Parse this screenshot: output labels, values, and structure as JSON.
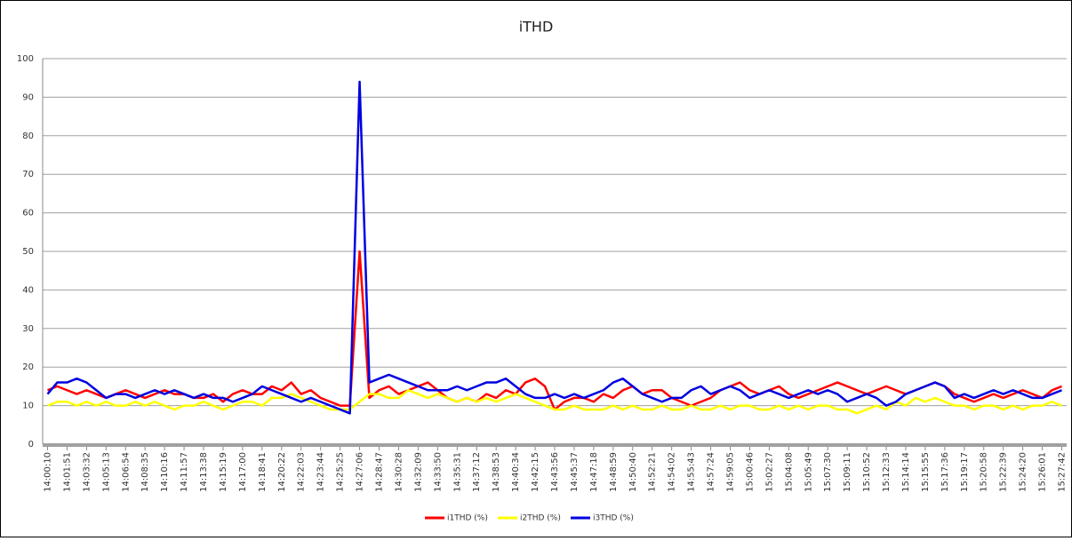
{
  "chart_data": {
    "type": "line",
    "title": "iTHD",
    "categories": [
      "14:00:10",
      null,
      "14:01:51",
      null,
      "14:03:32",
      null,
      "14:05:13",
      null,
      "14:06:54",
      null,
      "14:08:35",
      null,
      "14:10:16",
      null,
      "14:11:57",
      null,
      "14:13:38",
      null,
      "14:15:19",
      null,
      "14:17:00",
      null,
      "14:18:41",
      null,
      "14:20:22",
      null,
      "14:22:03",
      null,
      "14:23:44",
      null,
      "14:25:25",
      null,
      "14:27:06",
      null,
      "14:28:47",
      null,
      "14:30:28",
      null,
      "14:32:09",
      null,
      "14:33:50",
      null,
      "14:35:31",
      null,
      "14:37:12",
      null,
      "14:38:53",
      null,
      "14:40:34",
      null,
      "14:42:15",
      null,
      "14:43:56",
      null,
      "14:45:37",
      null,
      "14:47:18",
      null,
      "14:48:59",
      null,
      "14:50:40",
      null,
      "14:52:21",
      null,
      "14:54:02",
      null,
      "14:55:43",
      null,
      "14:57:24",
      null,
      "14:59:05",
      null,
      "15:00:46",
      null,
      "15:02:27",
      null,
      "15:04:08",
      null,
      "15:05:49",
      null,
      "15:07:30",
      null,
      "15:09:11",
      null,
      "15:10:52",
      null,
      "15:12:33",
      null,
      "15:14:14",
      null,
      "15:15:55",
      null,
      "15:17:36",
      null,
      "15:19:17",
      null,
      "15:20:58",
      null,
      "15:22:39",
      null,
      "15:24:20",
      null,
      "15:26:01",
      null,
      "15:27:42"
    ],
    "series": [
      {
        "name": "i1THD (%)",
        "color": "#ff0000",
        "values": [
          14,
          15,
          14,
          13,
          14,
          13,
          12,
          13,
          14,
          13,
          12,
          13,
          14,
          13,
          13,
          12,
          12,
          13,
          11,
          13,
          14,
          13,
          13,
          15,
          14,
          16,
          13,
          14,
          12,
          11,
          10,
          10,
          50,
          12,
          14,
          15,
          13,
          14,
          15,
          16,
          14,
          12,
          11,
          12,
          11,
          13,
          12,
          14,
          13,
          16,
          17,
          15,
          9,
          11,
          12,
          12,
          11,
          13,
          12,
          14,
          15,
          13,
          14,
          14,
          12,
          11,
          10,
          11,
          12,
          14,
          15,
          16,
          14,
          13,
          14,
          15,
          13,
          12,
          13,
          14,
          15,
          16,
          15,
          14,
          13,
          14,
          15,
          14,
          13,
          14,
          15,
          16,
          15,
          13,
          12,
          11,
          12,
          13,
          12,
          13,
          14,
          13,
          12,
          14,
          15
        ]
      },
      {
        "name": "i2THD (%)",
        "color": "#ffff00",
        "values": [
          10,
          11,
          11,
          10,
          11,
          10,
          11,
          10,
          10,
          11,
          10,
          11,
          10,
          9,
          10,
          10,
          11,
          10,
          9,
          10,
          11,
          11,
          10,
          12,
          12,
          13,
          12,
          11,
          10,
          9,
          9,
          9,
          11,
          13,
          13,
          12,
          12,
          14,
          13,
          12,
          13,
          12,
          11,
          12,
          11,
          12,
          11,
          12,
          13,
          12,
          11,
          10,
          9,
          9,
          10,
          9,
          9,
          9,
          10,
          9,
          10,
          9,
          9,
          10,
          9,
          9,
          10,
          9,
          9,
          10,
          9,
          10,
          10,
          9,
          9,
          10,
          9,
          10,
          9,
          10,
          10,
          9,
          9,
          8,
          9,
          10,
          9,
          11,
          10,
          12,
          11,
          12,
          11,
          10,
          10,
          9,
          10,
          10,
          9,
          10,
          9,
          10,
          10,
          11,
          10
        ]
      },
      {
        "name": "i3THD (%)",
        "color": "#0000e0",
        "values": [
          13,
          16,
          16,
          17,
          16,
          14,
          12,
          13,
          13,
          12,
          13,
          14,
          13,
          14,
          13,
          12,
          13,
          12,
          12,
          11,
          12,
          13,
          15,
          14,
          13,
          12,
          11,
          12,
          11,
          10,
          9,
          8,
          94,
          16,
          17,
          18,
          17,
          16,
          15,
          14,
          14,
          14,
          15,
          14,
          15,
          16,
          16,
          17,
          15,
          13,
          12,
          12,
          13,
          12,
          13,
          12,
          13,
          14,
          16,
          17,
          15,
          13,
          12,
          11,
          12,
          12,
          14,
          15,
          13,
          14,
          15,
          14,
          12,
          13,
          14,
          13,
          12,
          13,
          14,
          13,
          14,
          13,
          11,
          12,
          13,
          12,
          10,
          11,
          13,
          14,
          15,
          16,
          15,
          12,
          13,
          12,
          13,
          14,
          13,
          14,
          13,
          12,
          12,
          13,
          14
        ]
      }
    ],
    "ylim": [
      0,
      100
    ],
    "yticks": [
      0,
      10,
      20,
      30,
      40,
      50,
      60,
      70,
      80,
      90,
      100
    ],
    "grid": true
  }
}
